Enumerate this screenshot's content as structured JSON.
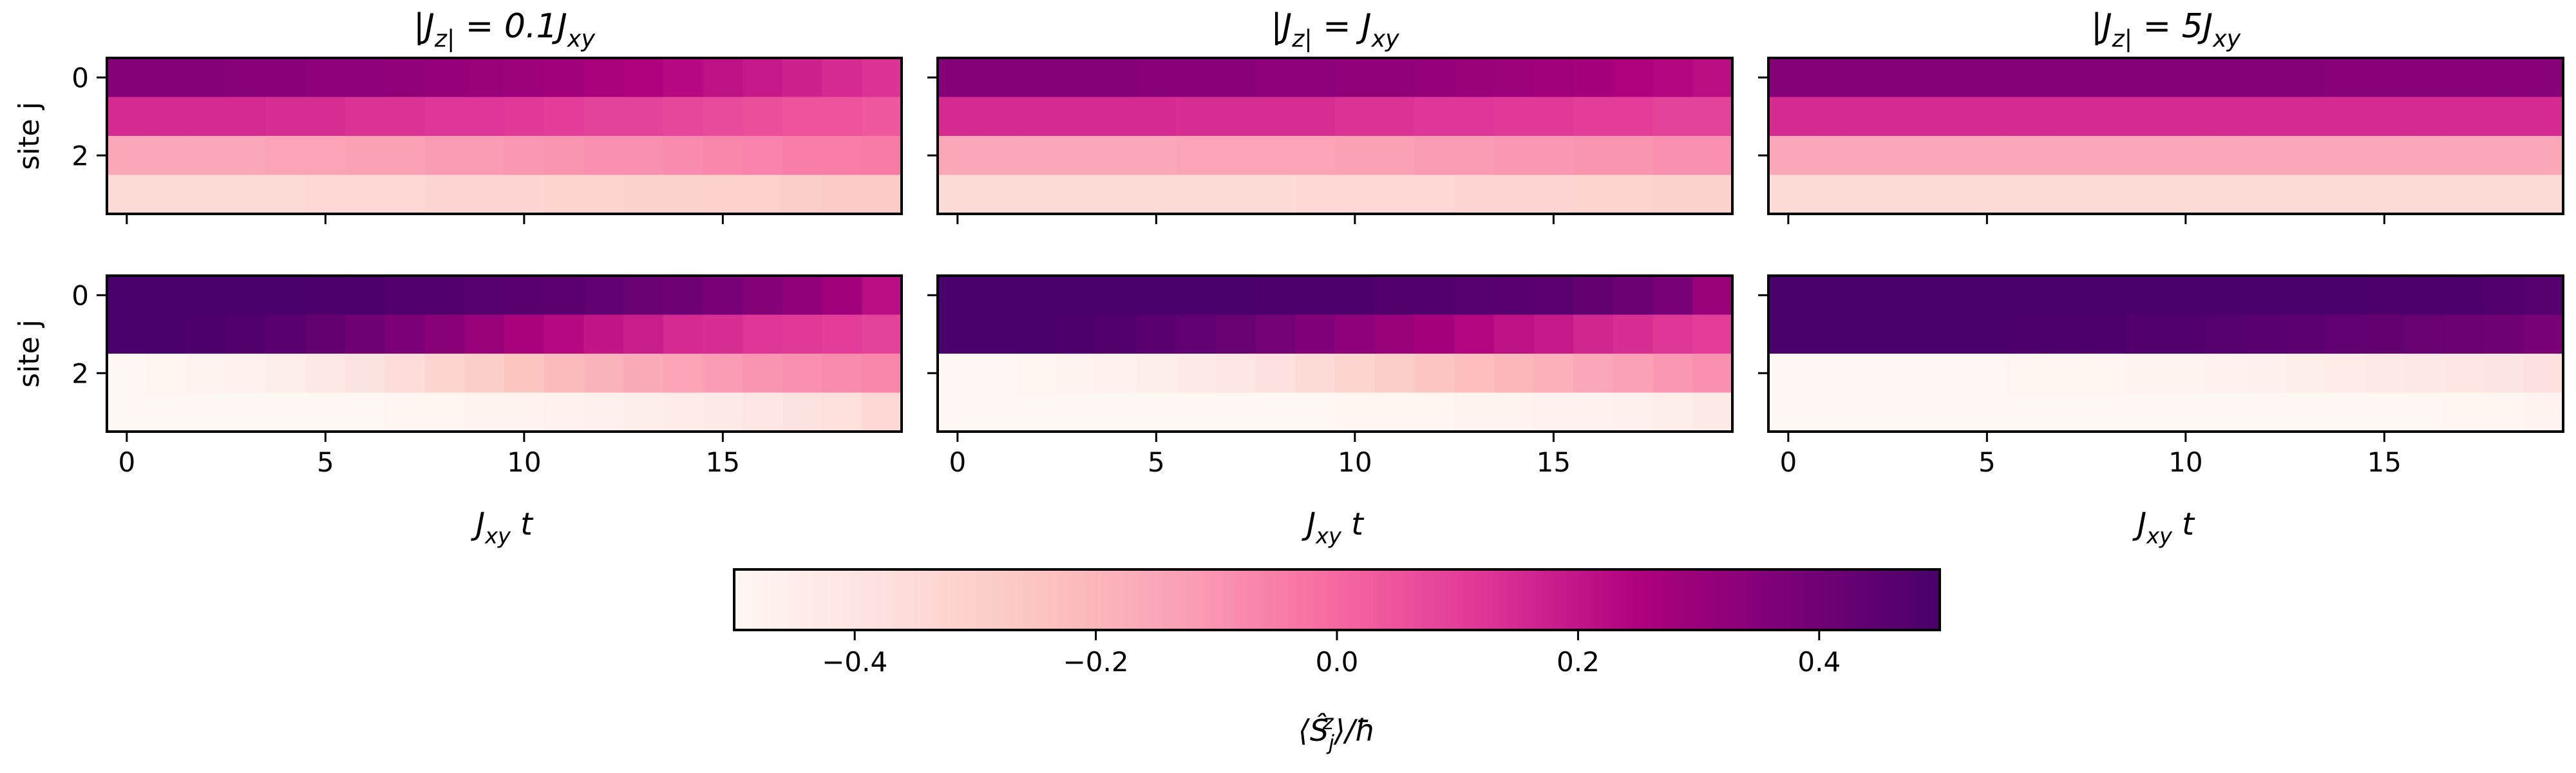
{
  "panel_titles": [
    "|J_z| = 0.1J_xy",
    "|J_z| = J_xy",
    "|J_z| = 5J_xy"
  ],
  "ylabel": "site j",
  "xlabel": "J_xy t",
  "ytick_labels": [
    "0",
    "2"
  ],
  "xtick_labels": [
    "0",
    "5",
    "10",
    "15"
  ],
  "colorbar": {
    "label": "⟨Ŝ_j^z⟩/ħ",
    "tick_labels": [
      "−0.4",
      "−0.2",
      "0.0",
      "0.2",
      "0.4"
    ],
    "range": [
      -0.5,
      0.5
    ],
    "colormap": "RdPu",
    "stops": [
      "#fff7f3",
      "#fde0dd",
      "#fcc5c0",
      "#fa9fb5",
      "#f768a1",
      "#dd3497",
      "#ae017e",
      "#7a0177",
      "#49006a"
    ]
  },
  "chart_data": [
    {
      "type": "heatmap",
      "row": "top",
      "title": "|J_z| = 0.1J_xy",
      "xlabel": "",
      "ylabel": "site j",
      "xlim": [
        -0.5,
        19.5
      ],
      "ylim": [
        3.5,
        -0.5
      ],
      "x": [
        0,
        1,
        2,
        3,
        4,
        5,
        6,
        7,
        8,
        9,
        10,
        11,
        12,
        13,
        14,
        15,
        16,
        17,
        18,
        19
      ],
      "y": [
        0,
        1,
        2,
        3
      ],
      "values": [
        [
          0.35,
          0.35,
          0.35,
          0.34,
          0.34,
          0.33,
          0.33,
          0.32,
          0.31,
          0.3,
          0.29,
          0.28,
          0.26,
          0.25,
          0.23,
          0.21,
          0.19,
          0.17,
          0.15,
          0.13
        ],
        [
          0.15,
          0.15,
          0.15,
          0.15,
          0.14,
          0.14,
          0.13,
          0.13,
          0.12,
          0.12,
          0.11,
          0.1,
          0.09,
          0.09,
          0.08,
          0.07,
          0.06,
          0.05,
          0.05,
          0.04
        ],
        [
          -0.15,
          -0.15,
          -0.15,
          -0.15,
          -0.14,
          -0.14,
          -0.13,
          -0.13,
          -0.12,
          -0.12,
          -0.11,
          -0.1,
          -0.09,
          -0.09,
          -0.08,
          -0.07,
          -0.06,
          -0.05,
          -0.05,
          -0.04
        ],
        [
          -0.35,
          -0.35,
          -0.35,
          -0.35,
          -0.35,
          -0.34,
          -0.34,
          -0.34,
          -0.33,
          -0.33,
          -0.33,
          -0.32,
          -0.32,
          -0.31,
          -0.31,
          -0.3,
          -0.3,
          -0.29,
          -0.28,
          -0.28
        ]
      ]
    },
    {
      "type": "heatmap",
      "row": "top",
      "title": "|J_z| = J_xy",
      "xlabel": "",
      "ylabel": "",
      "xlim": [
        -0.5,
        19.5
      ],
      "ylim": [
        3.5,
        -0.5
      ],
      "x": [
        0,
        1,
        2,
        3,
        4,
        5,
        6,
        7,
        8,
        9,
        10,
        11,
        12,
        13,
        14,
        15,
        16,
        17,
        18,
        19
      ],
      "y": [
        0,
        1,
        2,
        3
      ],
      "values": [
        [
          0.35,
          0.35,
          0.35,
          0.35,
          0.35,
          0.34,
          0.34,
          0.34,
          0.33,
          0.33,
          0.32,
          0.32,
          0.31,
          0.3,
          0.29,
          0.28,
          0.27,
          0.25,
          0.24,
          0.22
        ],
        [
          0.15,
          0.15,
          0.15,
          0.15,
          0.15,
          0.15,
          0.14,
          0.14,
          0.14,
          0.14,
          0.13,
          0.13,
          0.12,
          0.12,
          0.11,
          0.11,
          0.1,
          0.1,
          0.09,
          0.09
        ],
        [
          -0.15,
          -0.15,
          -0.15,
          -0.15,
          -0.15,
          -0.15,
          -0.14,
          -0.14,
          -0.14,
          -0.14,
          -0.13,
          -0.13,
          -0.12,
          -0.12,
          -0.11,
          -0.11,
          -0.1,
          -0.1,
          -0.09,
          -0.09
        ],
        [
          -0.35,
          -0.35,
          -0.35,
          -0.35,
          -0.35,
          -0.35,
          -0.35,
          -0.35,
          -0.35,
          -0.34,
          -0.34,
          -0.34,
          -0.34,
          -0.33,
          -0.33,
          -0.33,
          -0.32,
          -0.32,
          -0.31,
          -0.31
        ]
      ]
    },
    {
      "type": "heatmap",
      "row": "top",
      "title": "|J_z| = 5J_xy",
      "xlabel": "",
      "ylabel": "",
      "xlim": [
        -0.5,
        19.5
      ],
      "ylim": [
        3.5,
        -0.5
      ],
      "x": [
        0,
        1,
        2,
        3,
        4,
        5,
        6,
        7,
        8,
        9,
        10,
        11,
        12,
        13,
        14,
        15,
        16,
        17,
        18,
        19
      ],
      "y": [
        0,
        1,
        2,
        3
      ],
      "values": [
        [
          0.35,
          0.35,
          0.35,
          0.35,
          0.35,
          0.35,
          0.35,
          0.35,
          0.35,
          0.35,
          0.35,
          0.35,
          0.35,
          0.35,
          0.34,
          0.34,
          0.34,
          0.34,
          0.34,
          0.34
        ],
        [
          0.15,
          0.15,
          0.15,
          0.15,
          0.15,
          0.15,
          0.15,
          0.15,
          0.15,
          0.15,
          0.15,
          0.15,
          0.15,
          0.15,
          0.15,
          0.15,
          0.15,
          0.15,
          0.15,
          0.15
        ],
        [
          -0.15,
          -0.15,
          -0.15,
          -0.15,
          -0.15,
          -0.15,
          -0.15,
          -0.15,
          -0.15,
          -0.15,
          -0.15,
          -0.15,
          -0.15,
          -0.15,
          -0.15,
          -0.15,
          -0.15,
          -0.15,
          -0.15,
          -0.15
        ],
        [
          -0.35,
          -0.35,
          -0.35,
          -0.35,
          -0.35,
          -0.35,
          -0.35,
          -0.35,
          -0.35,
          -0.35,
          -0.35,
          -0.35,
          -0.35,
          -0.35,
          -0.35,
          -0.35,
          -0.35,
          -0.35,
          -0.35,
          -0.35
        ]
      ]
    },
    {
      "type": "heatmap",
      "row": "bottom",
      "title": "",
      "xlabel": "J_xy t",
      "ylabel": "site j",
      "xlim": [
        -0.5,
        19.5
      ],
      "ylim": [
        3.5,
        -0.5
      ],
      "x": [
        0,
        1,
        2,
        3,
        4,
        5,
        6,
        7,
        8,
        9,
        10,
        11,
        12,
        13,
        14,
        15,
        16,
        17,
        18,
        19
      ],
      "y": [
        0,
        1,
        2,
        3
      ],
      "values": [
        [
          0.5,
          0.5,
          0.5,
          0.5,
          0.5,
          0.49,
          0.49,
          0.48,
          0.48,
          0.47,
          0.46,
          0.45,
          0.44,
          0.42,
          0.4,
          0.38,
          0.35,
          0.32,
          0.28,
          0.22
        ],
        [
          0.5,
          0.5,
          0.49,
          0.48,
          0.46,
          0.43,
          0.4,
          0.37,
          0.34,
          0.3,
          0.26,
          0.23,
          0.2,
          0.18,
          0.15,
          0.14,
          0.12,
          0.11,
          0.1,
          0.09
        ],
        [
          -0.5,
          -0.49,
          -0.48,
          -0.47,
          -0.45,
          -0.42,
          -0.39,
          -0.36,
          -0.32,
          -0.29,
          -0.25,
          -0.22,
          -0.19,
          -0.16,
          -0.14,
          -0.12,
          -0.1,
          -0.09,
          -0.08,
          -0.07
        ],
        [
          -0.5,
          -0.5,
          -0.5,
          -0.5,
          -0.5,
          -0.5,
          -0.5,
          -0.49,
          -0.49,
          -0.48,
          -0.48,
          -0.47,
          -0.46,
          -0.45,
          -0.44,
          -0.43,
          -0.41,
          -0.39,
          -0.37,
          -0.34
        ]
      ]
    },
    {
      "type": "heatmap",
      "row": "bottom",
      "title": "",
      "xlabel": "J_xy t",
      "ylabel": "",
      "xlim": [
        -0.5,
        19.5
      ],
      "ylim": [
        3.5,
        -0.5
      ],
      "x": [
        0,
        1,
        2,
        3,
        4,
        5,
        6,
        7,
        8,
        9,
        10,
        11,
        12,
        13,
        14,
        15,
        16,
        17,
        18,
        19
      ],
      "y": [
        0,
        1,
        2,
        3
      ],
      "values": [
        [
          0.5,
          0.5,
          0.5,
          0.5,
          0.5,
          0.5,
          0.5,
          0.5,
          0.49,
          0.49,
          0.49,
          0.48,
          0.48,
          0.47,
          0.46,
          0.45,
          0.43,
          0.41,
          0.38,
          0.3
        ],
        [
          0.5,
          0.5,
          0.5,
          0.49,
          0.48,
          0.46,
          0.44,
          0.42,
          0.39,
          0.36,
          0.33,
          0.3,
          0.27,
          0.24,
          0.21,
          0.19,
          0.16,
          0.14,
          0.12,
          0.1
        ],
        [
          -0.5,
          -0.5,
          -0.49,
          -0.48,
          -0.47,
          -0.45,
          -0.43,
          -0.41,
          -0.38,
          -0.35,
          -0.32,
          -0.29,
          -0.26,
          -0.23,
          -0.2,
          -0.18,
          -0.15,
          -0.13,
          -0.11,
          -0.09
        ],
        [
          -0.5,
          -0.5,
          -0.5,
          -0.5,
          -0.5,
          -0.5,
          -0.5,
          -0.5,
          -0.5,
          -0.5,
          -0.49,
          -0.49,
          -0.49,
          -0.48,
          -0.48,
          -0.47,
          -0.47,
          -0.46,
          -0.45,
          -0.43
        ]
      ]
    },
    {
      "type": "heatmap",
      "row": "bottom",
      "title": "",
      "xlabel": "J_xy t",
      "ylabel": "",
      "xlim": [
        -0.5,
        19.5
      ],
      "ylim": [
        3.5,
        -0.5
      ],
      "x": [
        0,
        1,
        2,
        3,
        4,
        5,
        6,
        7,
        8,
        9,
        10,
        11,
        12,
        13,
        14,
        15,
        16,
        17,
        18,
        19
      ],
      "y": [
        0,
        1,
        2,
        3
      ],
      "values": [
        [
          0.5,
          0.5,
          0.5,
          0.5,
          0.5,
          0.5,
          0.5,
          0.5,
          0.5,
          0.5,
          0.5,
          0.5,
          0.5,
          0.5,
          0.5,
          0.49,
          0.49,
          0.49,
          0.48,
          0.47
        ],
        [
          0.5,
          0.5,
          0.5,
          0.5,
          0.5,
          0.5,
          0.49,
          0.49,
          0.49,
          0.48,
          0.48,
          0.47,
          0.46,
          0.45,
          0.44,
          0.43,
          0.42,
          0.41,
          0.4,
          0.38
        ],
        [
          -0.5,
          -0.5,
          -0.5,
          -0.5,
          -0.5,
          -0.5,
          -0.49,
          -0.49,
          -0.49,
          -0.48,
          -0.48,
          -0.47,
          -0.46,
          -0.45,
          -0.44,
          -0.43,
          -0.42,
          -0.41,
          -0.4,
          -0.38
        ],
        [
          -0.5,
          -0.5,
          -0.5,
          -0.5,
          -0.5,
          -0.5,
          -0.5,
          -0.5,
          -0.5,
          -0.5,
          -0.5,
          -0.5,
          -0.5,
          -0.5,
          -0.5,
          -0.5,
          -0.5,
          -0.49,
          -0.49,
          -0.48
        ]
      ]
    }
  ]
}
